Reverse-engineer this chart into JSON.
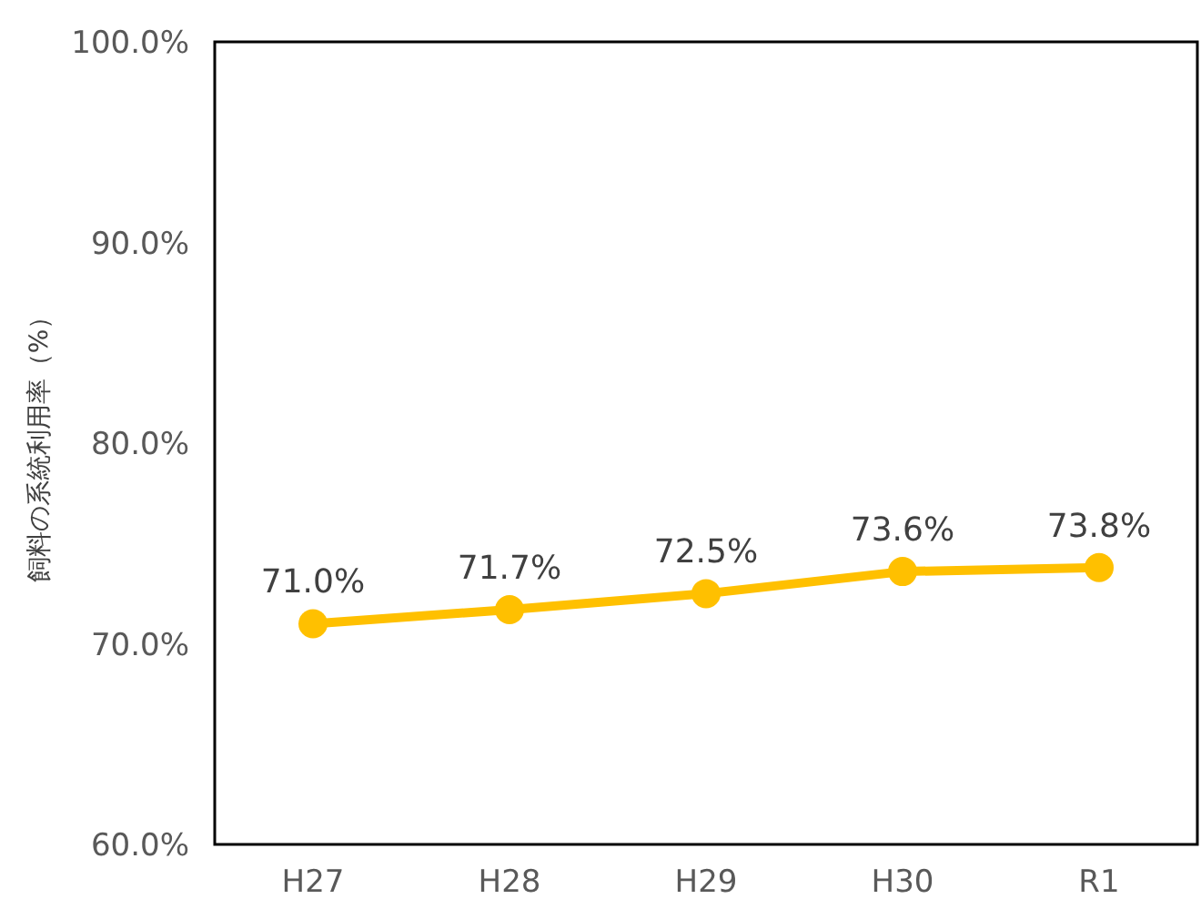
{
  "chart_data": {
    "type": "line",
    "ylabel": "飼料の系統利用率（%）",
    "categories": [
      "H27",
      "H28",
      "H29",
      "H30",
      "R1"
    ],
    "series": [
      {
        "color": "#ffc000",
        "values": [
          71.0,
          71.7,
          72.5,
          73.6,
          73.8
        ],
        "value_labels": [
          "71.0%",
          "71.7%",
          "72.5%",
          "73.6%",
          "73.8%"
        ]
      }
    ],
    "ylim": [
      60,
      100
    ],
    "yticks": [
      {
        "value": 60,
        "label": "60.0%"
      },
      {
        "value": 70,
        "label": "70.0%"
      },
      {
        "value": 80,
        "label": "80.0%"
      },
      {
        "value": 90,
        "label": "90.0%"
      },
      {
        "value": 100,
        "label": "100.0%"
      }
    ],
    "grid": false,
    "marker": "circle",
    "line_style": "solid"
  }
}
